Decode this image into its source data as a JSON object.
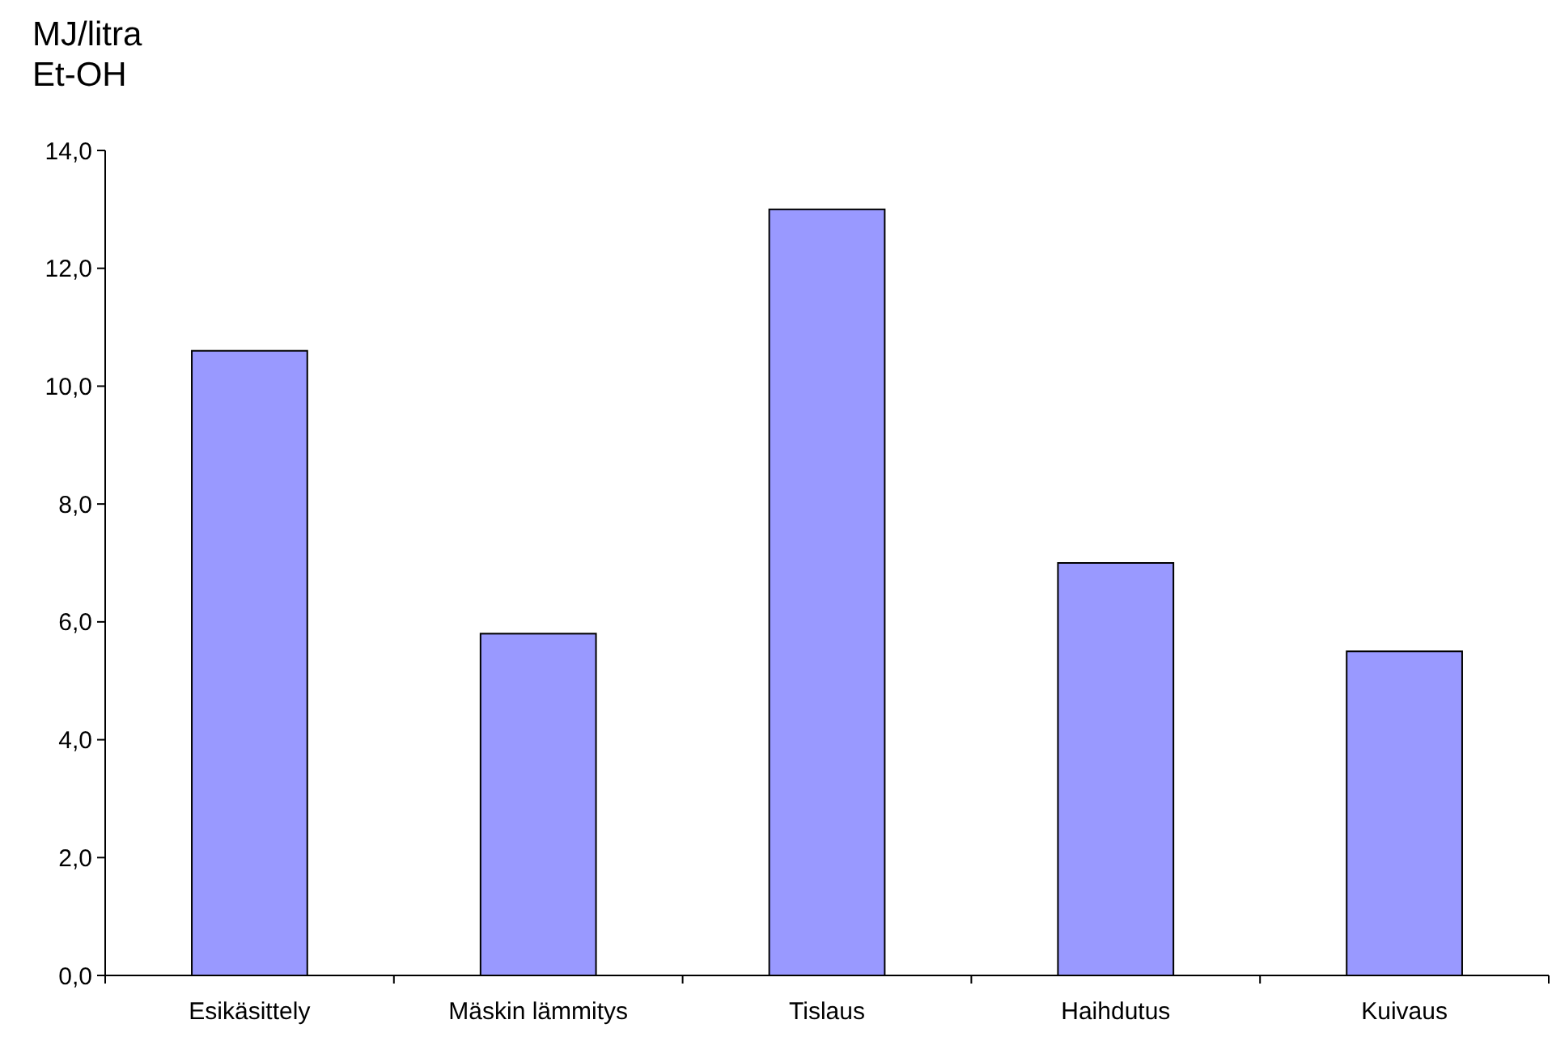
{
  "chart_data": {
    "type": "bar",
    "ylabel": "MJ/litra\nEt-OH",
    "categories": [
      "Esikäsittely",
      "Mäskin lämmitys",
      "Tislaus",
      "Haihdutus",
      "Kuivaus"
    ],
    "values": [
      10.6,
      5.8,
      13.0,
      7.0,
      5.5
    ],
    "color": "#9999ff",
    "ylim": [
      0,
      14
    ],
    "yticks": [
      {
        "value": 0,
        "label": "0,0"
      },
      {
        "value": 2,
        "label": "2,0"
      },
      {
        "value": 4,
        "label": "4,0"
      },
      {
        "value": 6,
        "label": "6,0"
      },
      {
        "value": 8,
        "label": "8,0"
      },
      {
        "value": 10,
        "label": "10,0"
      },
      {
        "value": 12,
        "label": "12,0"
      },
      {
        "value": 14,
        "label": "14,0"
      }
    ],
    "grid": false
  }
}
